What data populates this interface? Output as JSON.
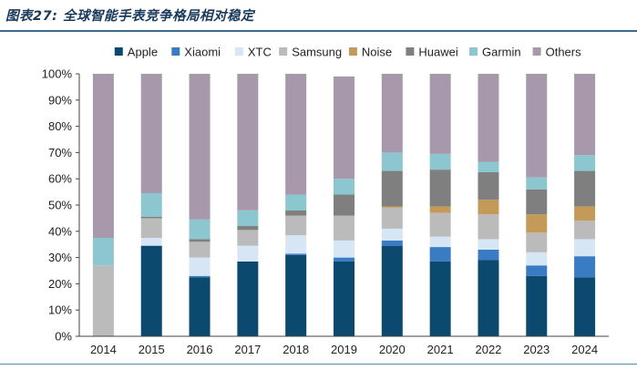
{
  "figure": {
    "title": "图表27: 全球智能手表竞争格局相对稳定"
  },
  "chart_data": {
    "type": "bar",
    "stacked": true,
    "categories": [
      "2014",
      "2015",
      "2016",
      "2017",
      "2018",
      "2019",
      "2020",
      "2021",
      "2022",
      "2023",
      "2024"
    ],
    "ylim": [
      0,
      100
    ],
    "yticks": [
      "0%",
      "10%",
      "20%",
      "30%",
      "40%",
      "50%",
      "60%",
      "70%",
      "80%",
      "90%",
      "100%"
    ],
    "legend_position": "top",
    "grid": false,
    "series": [
      {
        "name": "Apple",
        "color": "#0b4a6e",
        "values": [
          0,
          34.5,
          22.5,
          28.5,
          31,
          28.5,
          34.5,
          28.5,
          29,
          23,
          22.5
        ]
      },
      {
        "name": "Xiaomi",
        "color": "#3a7cc4",
        "values": [
          0,
          0,
          0.5,
          0,
          0.5,
          1.5,
          2,
          5.5,
          4,
          4,
          8
        ]
      },
      {
        "name": "XTC",
        "color": "#d6e6f4",
        "values": [
          0,
          3,
          7,
          6,
          7,
          6.5,
          4.5,
          4,
          4,
          5,
          6.5
        ]
      },
      {
        "name": "Samsung",
        "color": "#bbbbbb",
        "values": [
          27,
          7.5,
          6,
          6,
          7.5,
          9.5,
          8,
          9,
          9.5,
          7.5,
          7
        ]
      },
      {
        "name": "Noise",
        "color": "#c49a58",
        "values": [
          0,
          0,
          0,
          0,
          0,
          0,
          0.5,
          2.5,
          5.5,
          7,
          5.5
        ]
      },
      {
        "name": "Huawei",
        "color": "#7f7f7f",
        "values": [
          0,
          0.5,
          1,
          1.5,
          2,
          8,
          13.5,
          14,
          10.5,
          9.5,
          13.5
        ]
      },
      {
        "name": "Garmin",
        "color": "#8cc6cf",
        "values": [
          10.5,
          9,
          7.5,
          6,
          6,
          6,
          7,
          6,
          4,
          4.5,
          6
        ]
      },
      {
        "name": "Others",
        "color": "#a898ab",
        "values": [
          62.5,
          45.5,
          55.5,
          52,
          46,
          39,
          30,
          30.5,
          33.5,
          39.5,
          31
        ]
      }
    ]
  }
}
